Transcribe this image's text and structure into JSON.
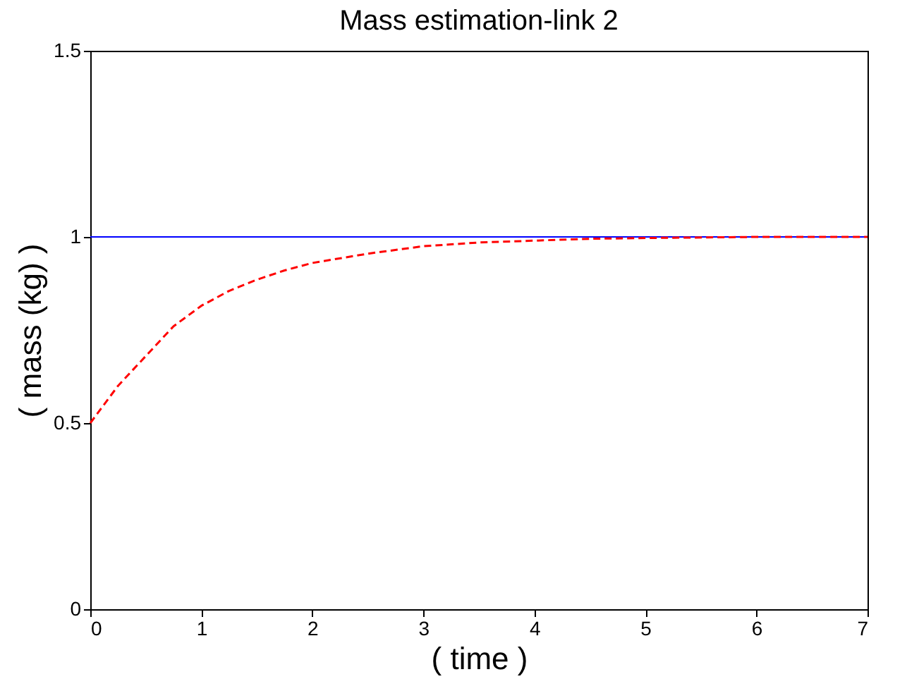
{
  "chart_data": {
    "type": "line",
    "title": "Mass estimation-link 2",
    "xlabel": "( time )",
    "ylabel": "( mass (kg) )",
    "series": [
      {
        "color": "#0000ff",
        "line_style": "solid",
        "x": [
          0,
          7
        ],
        "values": [
          1,
          1
        ]
      },
      {
        "color": "#ff0000",
        "line_style": "dashed",
        "x": [
          0,
          0.25,
          0.5,
          0.75,
          1,
          1.25,
          1.5,
          1.75,
          2,
          2.5,
          3,
          3.5,
          4,
          4.5,
          5,
          6,
          7
        ],
        "values": [
          0.5,
          0.6,
          0.68,
          0.76,
          0.815,
          0.855,
          0.885,
          0.91,
          0.93,
          0.955,
          0.975,
          0.985,
          0.99,
          0.995,
          0.997,
          1.0,
          1.0
        ]
      }
    ],
    "xlim": [
      0,
      7
    ],
    "ylim": [
      0,
      1.5
    ],
    "xticks": [
      0,
      1,
      2,
      3,
      4,
      5,
      6,
      7
    ],
    "yticks": [
      0,
      0.5,
      1,
      1.5
    ],
    "grid": false,
    "marker": "none"
  }
}
